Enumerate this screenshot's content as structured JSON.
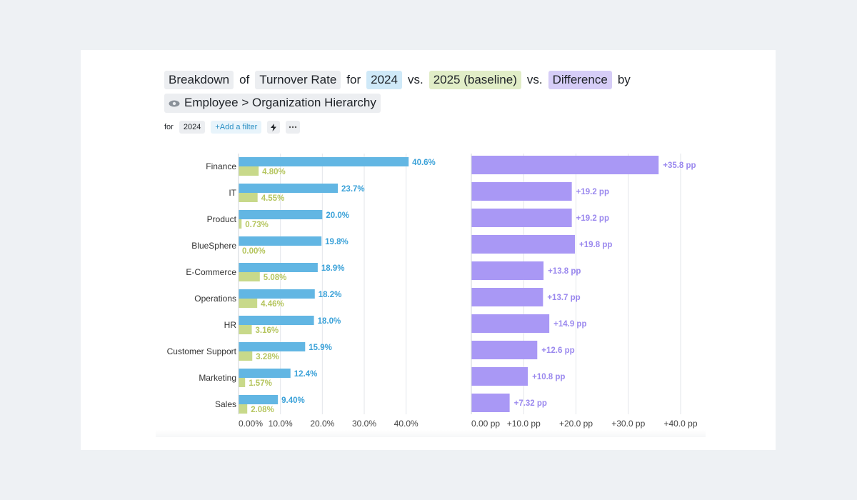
{
  "header": {
    "breakdown_label": "Breakdown",
    "of_label": "of",
    "metric_label": "Turnover Rate",
    "for_label": "for",
    "period_current": "2024",
    "vs_label_1": "vs.",
    "period_baseline": "2025 (baseline)",
    "vs_label_2": "vs.",
    "difference_label": "Difference",
    "by_label": "by",
    "dimension_label": "Employee > Organization Hierarchy"
  },
  "filters": {
    "for_label": "for",
    "period_pill": "2024",
    "add_filter_label": "+Add a filter",
    "lightning_icon": "lightning-icon",
    "more_icon": "more-icon"
  },
  "colors": {
    "current": "#62b6e3",
    "baseline": "#c8d98a",
    "difference": "#a998f5",
    "current_label": "#3aa1d8",
    "baseline_label": "#b5c55e",
    "difference_label": "#9a88ee"
  },
  "chart_data": [
    {
      "type": "bar",
      "orientation": "horizontal",
      "categories": [
        "Finance",
        "IT",
        "Product",
        "BlueSphere",
        "E-Commerce",
        "Operations",
        "HR",
        "Customer Support",
        "Marketing",
        "Sales"
      ],
      "series": [
        {
          "name": "2024",
          "values": [
            40.6,
            23.7,
            20.0,
            19.8,
            18.9,
            18.2,
            18.0,
            15.9,
            12.4,
            9.4
          ],
          "labels": [
            "40.6%",
            "23.7%",
            "20.0%",
            "19.8%",
            "18.9%",
            "18.2%",
            "18.0%",
            "15.9%",
            "12.4%",
            "9.40%"
          ]
        },
        {
          "name": "2025 (baseline)",
          "values": [
            4.8,
            4.55,
            0.73,
            0.0,
            5.08,
            4.46,
            3.16,
            3.28,
            1.57,
            2.08
          ],
          "labels": [
            "4.80%",
            "4.55%",
            "0.73%",
            "0.00%",
            "5.08%",
            "4.46%",
            "3.16%",
            "3.28%",
            "1.57%",
            "2.08%"
          ]
        }
      ],
      "xlim": [
        0,
        45
      ],
      "xticks": [
        0,
        10,
        20,
        30,
        40
      ],
      "xtick_labels": [
        "0.00%",
        "10.0%",
        "20.0%",
        "30.0%",
        "40.0%"
      ],
      "grid": true
    },
    {
      "type": "bar",
      "orientation": "horizontal",
      "categories": [
        "Finance",
        "IT",
        "Product",
        "BlueSphere",
        "E-Commerce",
        "Operations",
        "HR",
        "Customer Support",
        "Marketing",
        "Sales"
      ],
      "series": [
        {
          "name": "Difference",
          "values": [
            35.8,
            19.2,
            19.2,
            19.8,
            13.8,
            13.7,
            14.9,
            12.6,
            10.8,
            7.32
          ],
          "labels": [
            "+35.8 pp",
            "+19.2 pp",
            "+19.2 pp",
            "+19.8 pp",
            "+13.8 pp",
            "+13.7 pp",
            "+14.9 pp",
            "+12.6 pp",
            "+10.8 pp",
            "+7.32 pp"
          ]
        }
      ],
      "xlim": [
        0,
        40
      ],
      "xticks": [
        0,
        10,
        20,
        30,
        40
      ],
      "xtick_labels": [
        "0.00 pp",
        "+10.0 pp",
        "+20.0 pp",
        "+30.0 pp",
        "+40.0 pp"
      ],
      "grid": true
    }
  ]
}
